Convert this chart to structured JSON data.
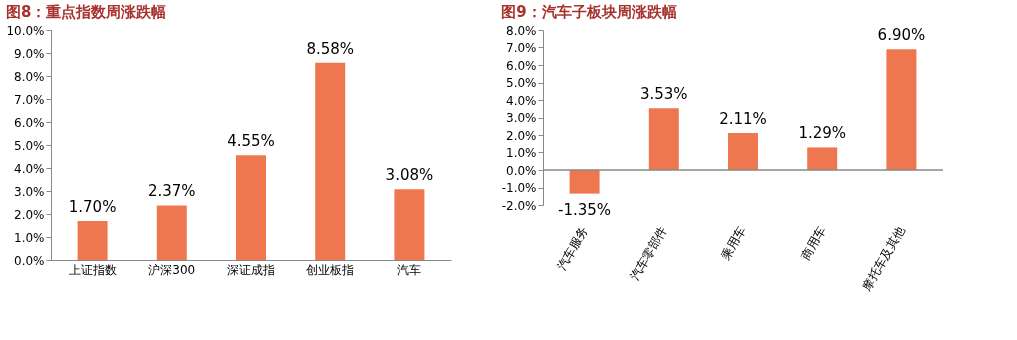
{
  "chart_data": [
    {
      "type": "bar",
      "title": "图8：重点指数周涨跌幅",
      "categories": [
        "上证指数",
        "沪深300",
        "深证成指",
        "创业板指",
        "汽车"
      ],
      "values": [
        1.7,
        2.37,
        4.55,
        8.58,
        3.08
      ],
      "color": "#ee7750",
      "value_labels": [
        "1.70%",
        "2.37%",
        "4.55%",
        "8.58%",
        "3.08%"
      ],
      "ylim": [
        0,
        10
      ],
      "yticks": [
        {
          "value": 0,
          "label": "0.0%"
        },
        {
          "value": 1,
          "label": "1.0%"
        },
        {
          "value": 2,
          "label": "2.0%"
        },
        {
          "value": 3,
          "label": "3.0%"
        },
        {
          "value": 4,
          "label": "4.0%"
        },
        {
          "value": 5,
          "label": "5.0%"
        },
        {
          "value": 6,
          "label": "6.0%"
        },
        {
          "value": 7,
          "label": "7.0%"
        },
        {
          "value": 8,
          "label": "8.0%"
        },
        {
          "value": 9,
          "label": "9.0%"
        },
        {
          "value": 10,
          "label": "10.0%"
        }
      ],
      "grid": false
    },
    {
      "type": "bar",
      "title": "图9：汽车子板块周涨跌幅",
      "categories": [
        "汽车服务",
        "汽车零部件",
        "乘用车",
        "商用车",
        "摩托车及其他"
      ],
      "values": [
        -1.35,
        3.53,
        2.11,
        1.29,
        6.9
      ],
      "color": "#ee7750",
      "value_labels": [
        "-1.35%",
        "3.53%",
        "2.11%",
        "1.29%",
        "6.90%"
      ],
      "ylim": [
        -2,
        8
      ],
      "yticks": [
        {
          "value": -2,
          "label": "-2.0%"
        },
        {
          "value": -1,
          "label": "-1.0%"
        },
        {
          "value": 0,
          "label": "0.0%"
        },
        {
          "value": 1,
          "label": "1.0%"
        },
        {
          "value": 2,
          "label": "2.0%"
        },
        {
          "value": 3,
          "label": "3.0%"
        },
        {
          "value": 4,
          "label": "4.0%"
        },
        {
          "value": 5,
          "label": "5.0%"
        },
        {
          "value": 6,
          "label": "6.0%"
        },
        {
          "value": 7,
          "label": "7.0%"
        },
        {
          "value": 8,
          "label": "8.0%"
        }
      ],
      "ref_lines": [
        {
          "axis": "y",
          "value": 0
        }
      ],
      "grid": false
    }
  ]
}
